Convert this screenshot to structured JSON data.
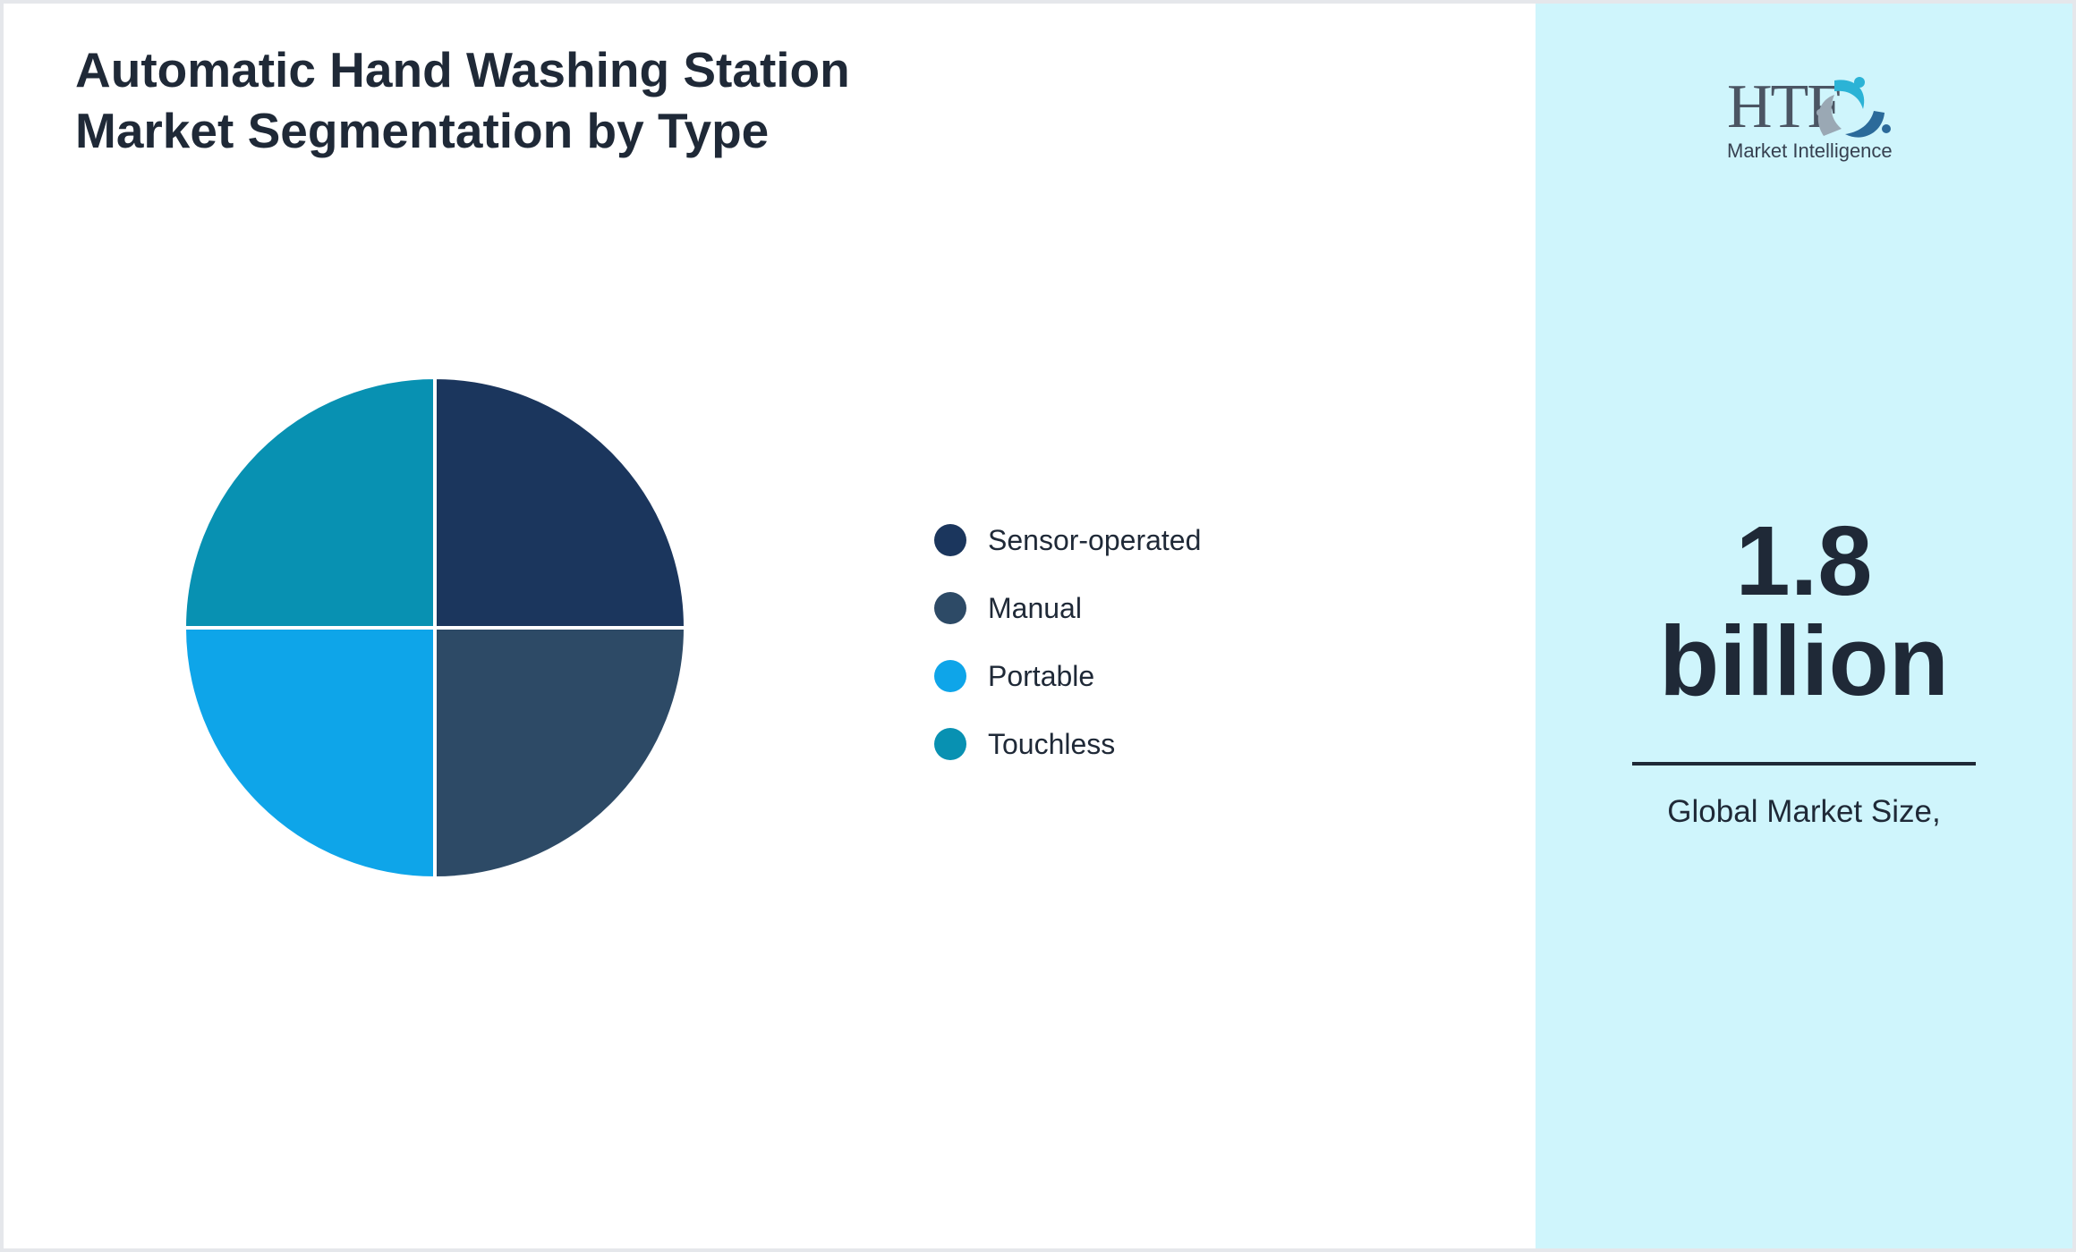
{
  "title_lines": [
    "Automatic Hand Washing Station",
    "Market Segmentation by Type"
  ],
  "chart_data": {
    "type": "pie",
    "title": "Automatic Hand Washing Station Market Segmentation by Type",
    "legend_position": "right",
    "slices": [
      {
        "label": "Sensor-operated",
        "value": 25,
        "color": "#1b365d"
      },
      {
        "label": "Manual",
        "value": 25,
        "color": "#2d4a66"
      },
      {
        "label": "Portable",
        "value": 25,
        "color": "#0ea5e9"
      },
      {
        "label": "Touchless",
        "value": 25,
        "color": "#0891b2"
      }
    ]
  },
  "logo": {
    "text": "HTF",
    "subtitle": "Market Intelligence"
  },
  "market": {
    "value_line1": "1.8",
    "value_line2": "billion",
    "caption": "Global Market Size,"
  },
  "colors": {
    "panel": "#cff5fc",
    "text": "#1f2937",
    "accent": "#0ea5e9"
  }
}
